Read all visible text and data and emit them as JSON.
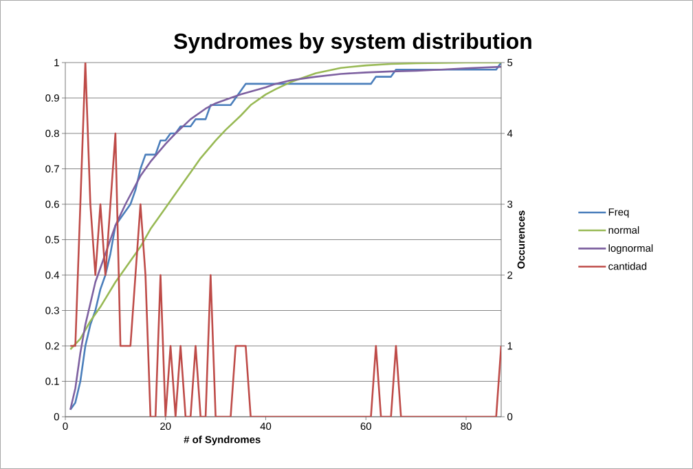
{
  "chart_data": {
    "type": "line",
    "title": "Syndromes by system distribution",
    "xlabel": "# of Syndromes",
    "y2label": "Occurences",
    "xlim": [
      0,
      87
    ],
    "xticks": [
      0,
      20,
      40,
      60,
      80
    ],
    "ylim": [
      0,
      1
    ],
    "yticks": [
      0,
      0.1,
      0.2,
      0.3,
      0.4,
      0.5,
      0.6,
      0.7,
      0.8,
      0.9,
      1
    ],
    "y2lim": [
      0,
      5
    ],
    "y2ticks": [
      0,
      1,
      2,
      3,
      4,
      5
    ],
    "grid": "y",
    "legend": "right",
    "marker": "none",
    "line_style": "solid",
    "series": [
      {
        "name": "Freq",
        "color": "#4a7ebb",
        "x": [
          1,
          2,
          3,
          4,
          5,
          6,
          7,
          8,
          9,
          10,
          11,
          12,
          13,
          14,
          15,
          16,
          17,
          18,
          19,
          20,
          21,
          22,
          23,
          24,
          25,
          26,
          27,
          28,
          29,
          30,
          31,
          32,
          33,
          34,
          35,
          36,
          37,
          38,
          39,
          40,
          41,
          42,
          43,
          44,
          45,
          46,
          47,
          48,
          49,
          50,
          51,
          52,
          53,
          54,
          55,
          56,
          57,
          58,
          59,
          60,
          61,
          62,
          63,
          64,
          65,
          66,
          67,
          68,
          69,
          70,
          71,
          72,
          73,
          74,
          75,
          76,
          77,
          78,
          79,
          80,
          81,
          82,
          83,
          84,
          85,
          86,
          87
        ],
        "values": [
          0.02,
          0.04,
          0.1,
          0.2,
          0.26,
          0.3,
          0.36,
          0.4,
          0.46,
          0.54,
          0.56,
          0.58,
          0.6,
          0.64,
          0.7,
          0.74,
          0.74,
          0.74,
          0.78,
          0.78,
          0.8,
          0.8,
          0.82,
          0.82,
          0.82,
          0.84,
          0.84,
          0.84,
          0.88,
          0.88,
          0.88,
          0.88,
          0.88,
          0.9,
          0.92,
          0.94,
          0.94,
          0.94,
          0.94,
          0.94,
          0.94,
          0.94,
          0.94,
          0.94,
          0.94,
          0.94,
          0.94,
          0.94,
          0.94,
          0.94,
          0.94,
          0.94,
          0.94,
          0.94,
          0.94,
          0.94,
          0.94,
          0.94,
          0.94,
          0.94,
          0.94,
          0.96,
          0.96,
          0.96,
          0.96,
          0.98,
          0.98,
          0.98,
          0.98,
          0.98,
          0.98,
          0.98,
          0.98,
          0.98,
          0.98,
          0.98,
          0.98,
          0.98,
          0.98,
          0.98,
          0.98,
          0.98,
          0.98,
          0.98,
          0.98,
          0.98,
          1
        ]
      },
      {
        "name": "normal",
        "color": "#98b954",
        "x": [
          1,
          3,
          5,
          7,
          10,
          12,
          15,
          17,
          20,
          22,
          25,
          27,
          30,
          32,
          35,
          37,
          40,
          42,
          45,
          50,
          55,
          60,
          65,
          70,
          75,
          80,
          87
        ],
        "values": [
          0.19,
          0.22,
          0.27,
          0.31,
          0.38,
          0.42,
          0.48,
          0.53,
          0.59,
          0.63,
          0.69,
          0.73,
          0.78,
          0.81,
          0.85,
          0.88,
          0.91,
          0.925,
          0.945,
          0.97,
          0.985,
          0.992,
          0.996,
          0.998,
          0.999,
          1,
          1
        ]
      },
      {
        "name": "lognormal",
        "color": "#7d60a0",
        "x": [
          1,
          2,
          3,
          4,
          5,
          6,
          7,
          8,
          10,
          12,
          15,
          17,
          20,
          22,
          25,
          28,
          30,
          32,
          35,
          40,
          42,
          45,
          50,
          55,
          60,
          65,
          70,
          75,
          80,
          87
        ],
        "values": [
          0.02,
          0.08,
          0.18,
          0.26,
          0.32,
          0.38,
          0.42,
          0.46,
          0.54,
          0.6,
          0.68,
          0.72,
          0.77,
          0.8,
          0.84,
          0.87,
          0.885,
          0.895,
          0.91,
          0.93,
          0.94,
          0.95,
          0.96,
          0.968,
          0.972,
          0.975,
          0.977,
          0.98,
          0.984,
          0.988
        ]
      },
      {
        "name": "cantidad",
        "color": "#be4b48",
        "axis": "y2",
        "x": [
          1,
          2,
          3,
          4,
          5,
          6,
          7,
          8,
          9,
          10,
          11,
          12,
          13,
          14,
          15,
          16,
          17,
          18,
          19,
          20,
          21,
          22,
          23,
          24,
          25,
          26,
          27,
          28,
          29,
          30,
          31,
          32,
          33,
          34,
          35,
          36,
          37,
          38,
          39,
          40,
          41,
          42,
          43,
          44,
          45,
          46,
          47,
          48,
          49,
          50,
          51,
          52,
          53,
          54,
          55,
          56,
          57,
          58,
          59,
          60,
          61,
          62,
          63,
          64,
          65,
          66,
          67,
          68,
          69,
          70,
          71,
          72,
          73,
          74,
          75,
          76,
          77,
          78,
          79,
          80,
          81,
          82,
          83,
          84,
          85,
          86,
          87
        ],
        "values": [
          1,
          1,
          3,
          5,
          3,
          2,
          3,
          2,
          3,
          4,
          1,
          1,
          1,
          2,
          3,
          2,
          0,
          0,
          2,
          0,
          1,
          0,
          1,
          0,
          0,
          1,
          0,
          0,
          2,
          0,
          0,
          0,
          0,
          1,
          1,
          1,
          0,
          0,
          0,
          0,
          0,
          0,
          0,
          0,
          0,
          0,
          0,
          0,
          0,
          0,
          0,
          0,
          0,
          0,
          0,
          0,
          0,
          0,
          0,
          0,
          0,
          1,
          0,
          0,
          0,
          1,
          0,
          0,
          0,
          0,
          0,
          0,
          0,
          0,
          0,
          0,
          0,
          0,
          0,
          0,
          0,
          0,
          0,
          0,
          0,
          0,
          1
        ]
      }
    ]
  }
}
